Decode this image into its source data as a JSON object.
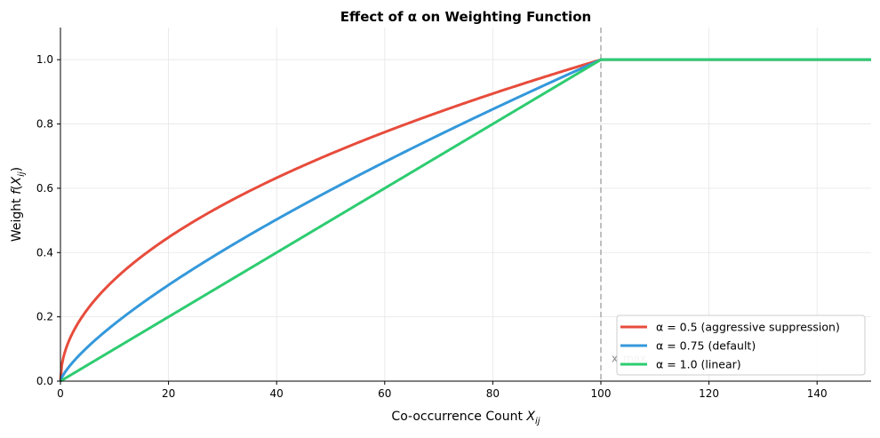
{
  "chart_data": {
    "type": "line",
    "title": "Effect of α on Weighting Function",
    "xlabel": "Co-occurrence Count X_ij",
    "ylabel": "Weight f(X_ij)",
    "xlim": [
      0,
      150
    ],
    "ylim": [
      0,
      1.1
    ],
    "xticks": [
      0,
      20,
      40,
      60,
      80,
      100,
      120,
      140
    ],
    "yticks": [
      0.0,
      0.2,
      0.4,
      0.6,
      0.8,
      1.0
    ],
    "grid": true,
    "legend_position": "lower-right",
    "x_max": 100,
    "annotation": "x_max",
    "function": "f(x) = (x / x_max)^α for x < x_max, else 1",
    "series": [
      {
        "name": "α = 0.5 (aggressive suppression)",
        "alpha": 0.5,
        "color": "#e74c3c"
      },
      {
        "name": "α = 0.75 (default)",
        "alpha": 0.75,
        "color": "#3498db"
      },
      {
        "name": "α = 1.0 (linear)",
        "alpha": 1.0,
        "color": "#2ecc71"
      }
    ]
  }
}
